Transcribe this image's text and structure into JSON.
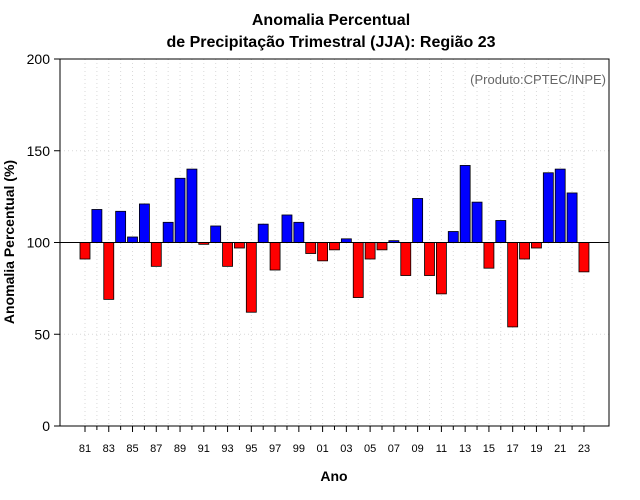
{
  "chart_data": {
    "type": "bar",
    "title_line1": "Anomalia Percentual",
    "title_line2": "de Precipitação Trimestral (JJA): Região 23",
    "xlabel": "Ano",
    "ylabel": "Anomalia Percentual (%)",
    "credit": "(Produto:CPTEC/INPE)",
    "ylim": [
      0,
      200
    ],
    "yticks": [
      0,
      50,
      100,
      150,
      200
    ],
    "baseline": 100,
    "grid": true,
    "colors": {
      "above": "#0000ff",
      "below": "#ff0000",
      "baseline": "#000000",
      "grid": "#d9d9d9"
    },
    "categories": [
      "81",
      "82",
      "83",
      "84",
      "85",
      "86",
      "87",
      "88",
      "89",
      "90",
      "91",
      "92",
      "93",
      "94",
      "95",
      "96",
      "97",
      "98",
      "99",
      "00",
      "01",
      "02",
      "03",
      "04",
      "05",
      "06",
      "07",
      "08",
      "09",
      "10",
      "11",
      "12",
      "13",
      "14",
      "15",
      "16",
      "17",
      "18",
      "19",
      "20",
      "21",
      "22",
      "23"
    ],
    "xtick_labels": [
      "81",
      "83",
      "85",
      "87",
      "89",
      "91",
      "93",
      "95",
      "97",
      "99",
      "01",
      "03",
      "05",
      "07",
      "09",
      "11",
      "13",
      "15",
      "17",
      "19",
      "21",
      "23"
    ],
    "values": [
      91,
      118,
      69,
      117,
      103,
      121,
      87,
      111,
      135,
      140,
      99,
      109,
      87,
      97,
      62,
      110,
      85,
      115,
      111,
      94,
      90,
      96,
      102,
      70,
      91,
      96,
      101,
      82,
      124,
      82,
      72,
      106,
      142,
      122,
      86,
      112,
      54,
      91,
      97,
      138,
      140,
      127,
      84
    ]
  }
}
